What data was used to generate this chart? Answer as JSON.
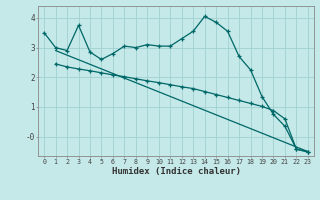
{
  "xlabel": "Humidex (Indice chaleur)",
  "background_color": "#c5e8e8",
  "line_color": "#006868",
  "grid_color": "#a0d0d0",
  "xlim": [
    -0.5,
    23.5
  ],
  "ylim": [
    -0.65,
    4.4
  ],
  "yticks": [
    0,
    1,
    2,
    3,
    4
  ],
  "ytick_labels": [
    "-0",
    "1",
    "2",
    "3",
    "4"
  ],
  "xticks": [
    0,
    1,
    2,
    3,
    4,
    5,
    6,
    7,
    8,
    9,
    10,
    11,
    12,
    13,
    14,
    15,
    16,
    17,
    18,
    19,
    20,
    21,
    22,
    23
  ],
  "line1_x": [
    0,
    1,
    2,
    3,
    4,
    5,
    6,
    7,
    8,
    9,
    10,
    11,
    12,
    13,
    14,
    15,
    16,
    17,
    18,
    19,
    20,
    21,
    22,
    23
  ],
  "line1_y": [
    3.5,
    3.0,
    2.9,
    3.75,
    2.85,
    2.6,
    2.8,
    3.05,
    3.0,
    3.1,
    3.05,
    3.05,
    3.3,
    3.55,
    4.05,
    3.85,
    3.55,
    2.7,
    2.25,
    1.35,
    0.75,
    0.35,
    -0.42,
    -0.5
  ],
  "line2_x": [
    1,
    2,
    3,
    4,
    5,
    6,
    7,
    8,
    9,
    10,
    11,
    12,
    13,
    14,
    15,
    16,
    17,
    18,
    19,
    20,
    21,
    22,
    23
  ],
  "line2_y": [
    2.45,
    2.35,
    2.28,
    2.22,
    2.15,
    2.08,
    2.02,
    1.95,
    1.88,
    1.82,
    1.75,
    1.68,
    1.62,
    1.52,
    1.42,
    1.32,
    1.22,
    1.12,
    1.02,
    0.88,
    0.6,
    -0.42,
    -0.52
  ],
  "line3_x": [
    1,
    23
  ],
  "line3_y": [
    2.9,
    -0.5
  ]
}
